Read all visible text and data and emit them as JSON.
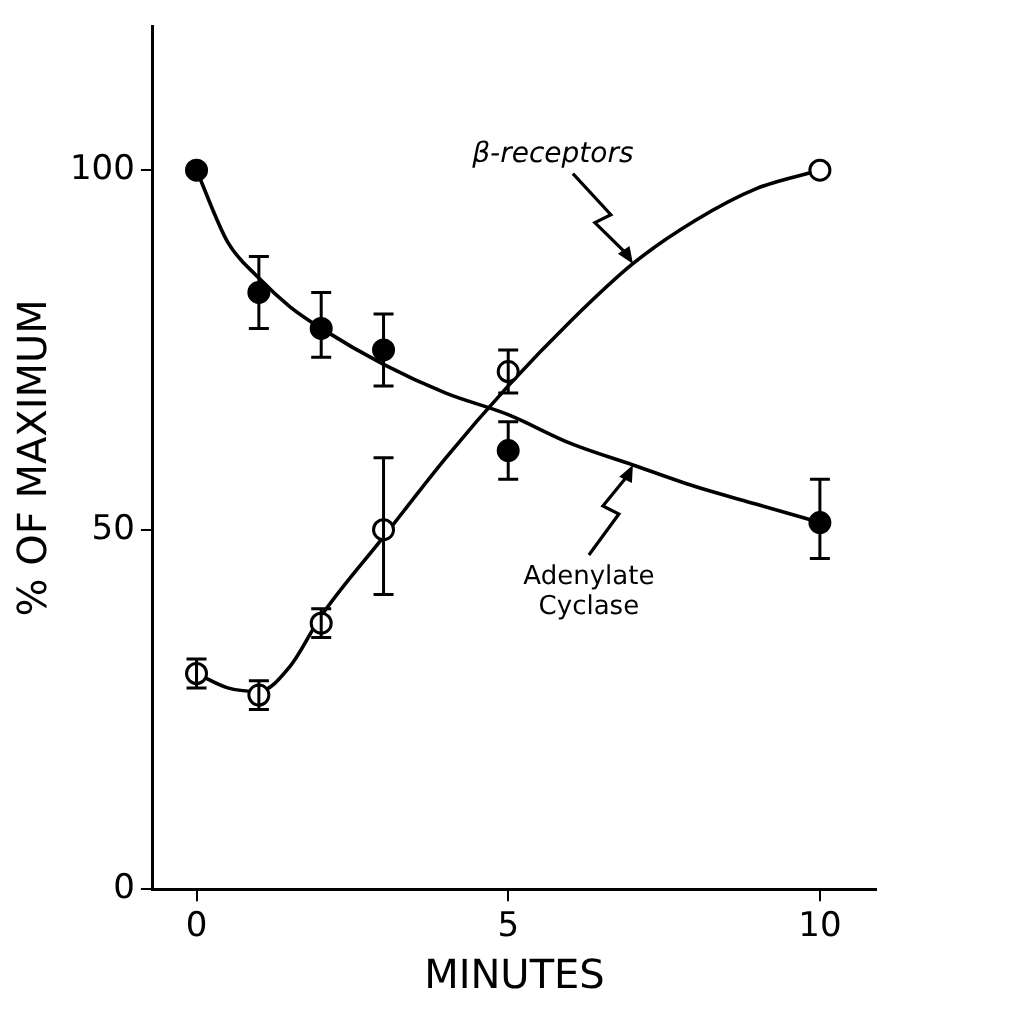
{
  "chart_data": {
    "type": "scatter",
    "xlabel": "MINUTES",
    "ylabel": "% OF MAXIMUM",
    "xlim": [
      -0.7,
      10.9
    ],
    "ylim": [
      0,
      120
    ],
    "xticks": [
      0,
      5,
      10
    ],
    "yticks": [
      0,
      50,
      100
    ],
    "grid": false,
    "legend": false,
    "marker": "circle",
    "series": [
      {
        "color": "#000000",
        "x": [
          0,
          1,
          2,
          3,
          5,
          10
        ],
        "values": [
          100,
          83,
          78,
          75,
          61,
          51
        ],
        "errors": [
          null,
          [
            78,
            88
          ],
          [
            74,
            83
          ],
          [
            70,
            80
          ],
          [
            57,
            65
          ],
          [
            46,
            57
          ]
        ]
      },
      {
        "color": "#ffffff",
        "x": [
          0,
          1,
          2,
          3,
          5,
          10
        ],
        "values": [
          30,
          27,
          37,
          50,
          72,
          100
        ],
        "errors": [
          [
            28,
            32
          ],
          [
            25,
            29
          ],
          [
            35,
            39
          ],
          [
            41,
            60
          ],
          [
            69,
            75
          ],
          null
        ]
      },
      {
        "type": "line",
        "name": "Adenylate Cyclase",
        "color": "#000000",
        "marker": "none",
        "x": [
          0,
          0.5,
          1,
          1.5,
          2,
          3,
          4,
          5,
          6,
          7,
          8,
          9,
          10
        ],
        "values": [
          100,
          90,
          85,
          81,
          78,
          73,
          69,
          66,
          62,
          59,
          56,
          53.5,
          51
        ]
      },
      {
        "type": "line",
        "name": "β-receptors",
        "color": "#000000",
        "marker": "none",
        "x": [
          0,
          0.5,
          1,
          1.5,
          2,
          3,
          4,
          5,
          6,
          7,
          8,
          9,
          10
        ],
        "values": [
          30,
          28,
          27.5,
          31,
          38,
          49,
          60,
          70,
          79,
          87,
          93,
          97.5,
          100
        ]
      }
    ]
  }
}
